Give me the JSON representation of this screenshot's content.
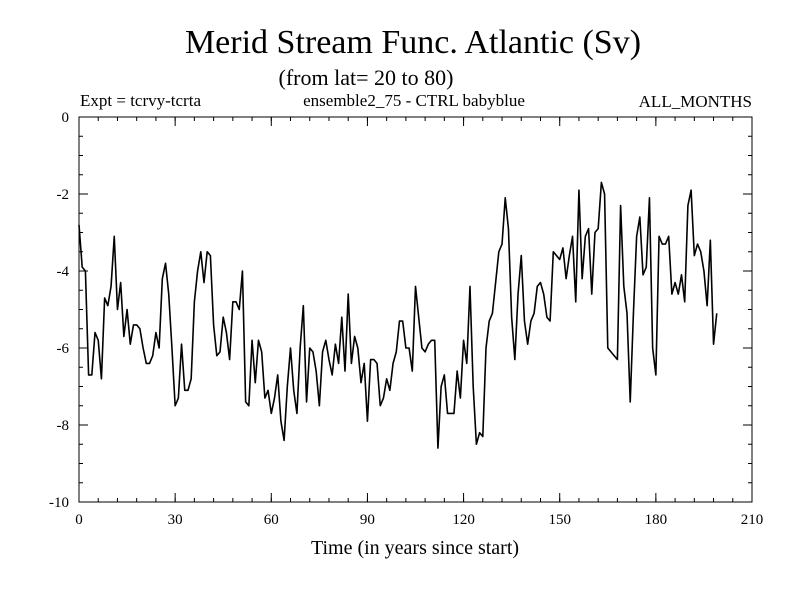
{
  "chart_data": {
    "type": "line",
    "title": "Merid Stream Func. Atlantic (Sv)",
    "subtitle": "(from lat= 20 to 80)",
    "header_left": "Expt = tcrvy-tcrta",
    "header_center": "ensemble2_75 - CTRL babyblue",
    "header_right": "ALL_MONTHS",
    "xlabel": "Time (in years since start)",
    "ylabel": "",
    "xlim": [
      0,
      210
    ],
    "ylim": [
      -10,
      0
    ],
    "x_ticks": [
      0,
      30,
      60,
      90,
      120,
      150,
      180,
      210
    ],
    "y_ticks": [
      0,
      -2,
      -4,
      -6,
      -8,
      -10
    ],
    "x_minor_step": 6,
    "y_minor_step": 0.5,
    "grid": false,
    "line_color": "#000000",
    "series": [
      {
        "name": "Merid Stream Func. Atlantic",
        "x_start": 0,
        "x_step": 1,
        "values": [
          -2.8,
          -3.9,
          -4.0,
          -6.7,
          -6.7,
          -5.6,
          -5.8,
          -6.8,
          -4.7,
          -4.9,
          -4.4,
          -3.1,
          -5.0,
          -4.3,
          -5.7,
          -5.0,
          -5.9,
          -5.4,
          -5.4,
          -5.5,
          -6.0,
          -6.4,
          -6.4,
          -6.2,
          -5.6,
          -6.0,
          -4.2,
          -3.8,
          -4.6,
          -6.0,
          -7.5,
          -7.3,
          -5.9,
          -7.1,
          -7.1,
          -6.8,
          -4.8,
          -4.0,
          -3.5,
          -4.3,
          -3.5,
          -3.6,
          -5.4,
          -6.2,
          -6.1,
          -5.2,
          -5.6,
          -6.3,
          -4.8,
          -4.8,
          -5.0,
          -4.0,
          -7.4,
          -7.5,
          -5.8,
          -6.9,
          -5.8,
          -6.1,
          -7.3,
          -7.1,
          -7.7,
          -7.3,
          -6.7,
          -7.9,
          -8.4,
          -7.0,
          -6.0,
          -7.1,
          -7.7,
          -6.0,
          -4.9,
          -7.4,
          -6.0,
          -6.1,
          -6.6,
          -7.5,
          -6.1,
          -5.8,
          -6.3,
          -6.7,
          -5.9,
          -6.4,
          -5.2,
          -6.6,
          -4.6,
          -6.4,
          -5.7,
          -6.0,
          -6.9,
          -6.4,
          -7.9,
          -6.3,
          -6.3,
          -6.4,
          -7.5,
          -7.3,
          -6.8,
          -7.1,
          -6.4,
          -6.1,
          -5.3,
          -5.3,
          -6.0,
          -6.0,
          -6.6,
          -4.4,
          -5.2,
          -6.0,
          -6.1,
          -5.9,
          -5.8,
          -5.8,
          -8.6,
          -7.0,
          -6.7,
          -7.7,
          -7.7,
          -7.7,
          -6.6,
          -7.3,
          -5.8,
          -6.4,
          -4.4,
          -7.0,
          -8.5,
          -8.2,
          -8.3,
          -6.0,
          -5.3,
          -5.1,
          -4.3,
          -3.5,
          -3.3,
          -2.1,
          -2.9,
          -5.2,
          -6.3,
          -4.6,
          -3.6,
          -5.3,
          -5.9,
          -5.3,
          -5.1,
          -4.4,
          -4.3,
          -4.6,
          -5.2,
          -5.3,
          -3.5,
          -3.6,
          -3.7,
          -3.4,
          -4.2,
          -3.6,
          -3.1,
          -4.8,
          -1.9,
          -4.2,
          -3.1,
          -2.9,
          -4.6,
          -3.0,
          -2.9,
          -1.7,
          -2.0,
          -6.0,
          -6.1,
          -6.2,
          -6.3,
          -2.3,
          -4.4,
          -5.1,
          -7.4,
          -5.1,
          -3.1,
          -2.6,
          -4.1,
          -3.9,
          -2.1,
          -6.0,
          -6.7,
          -3.1,
          -3.3,
          -3.3,
          -3.1,
          -4.6,
          -4.3,
          -4.6,
          -4.1,
          -4.8,
          -2.3,
          -1.9,
          -3.6,
          -3.3,
          -3.5,
          -4.0,
          -4.9,
          -3.2,
          -5.9,
          -5.1
        ]
      }
    ]
  }
}
